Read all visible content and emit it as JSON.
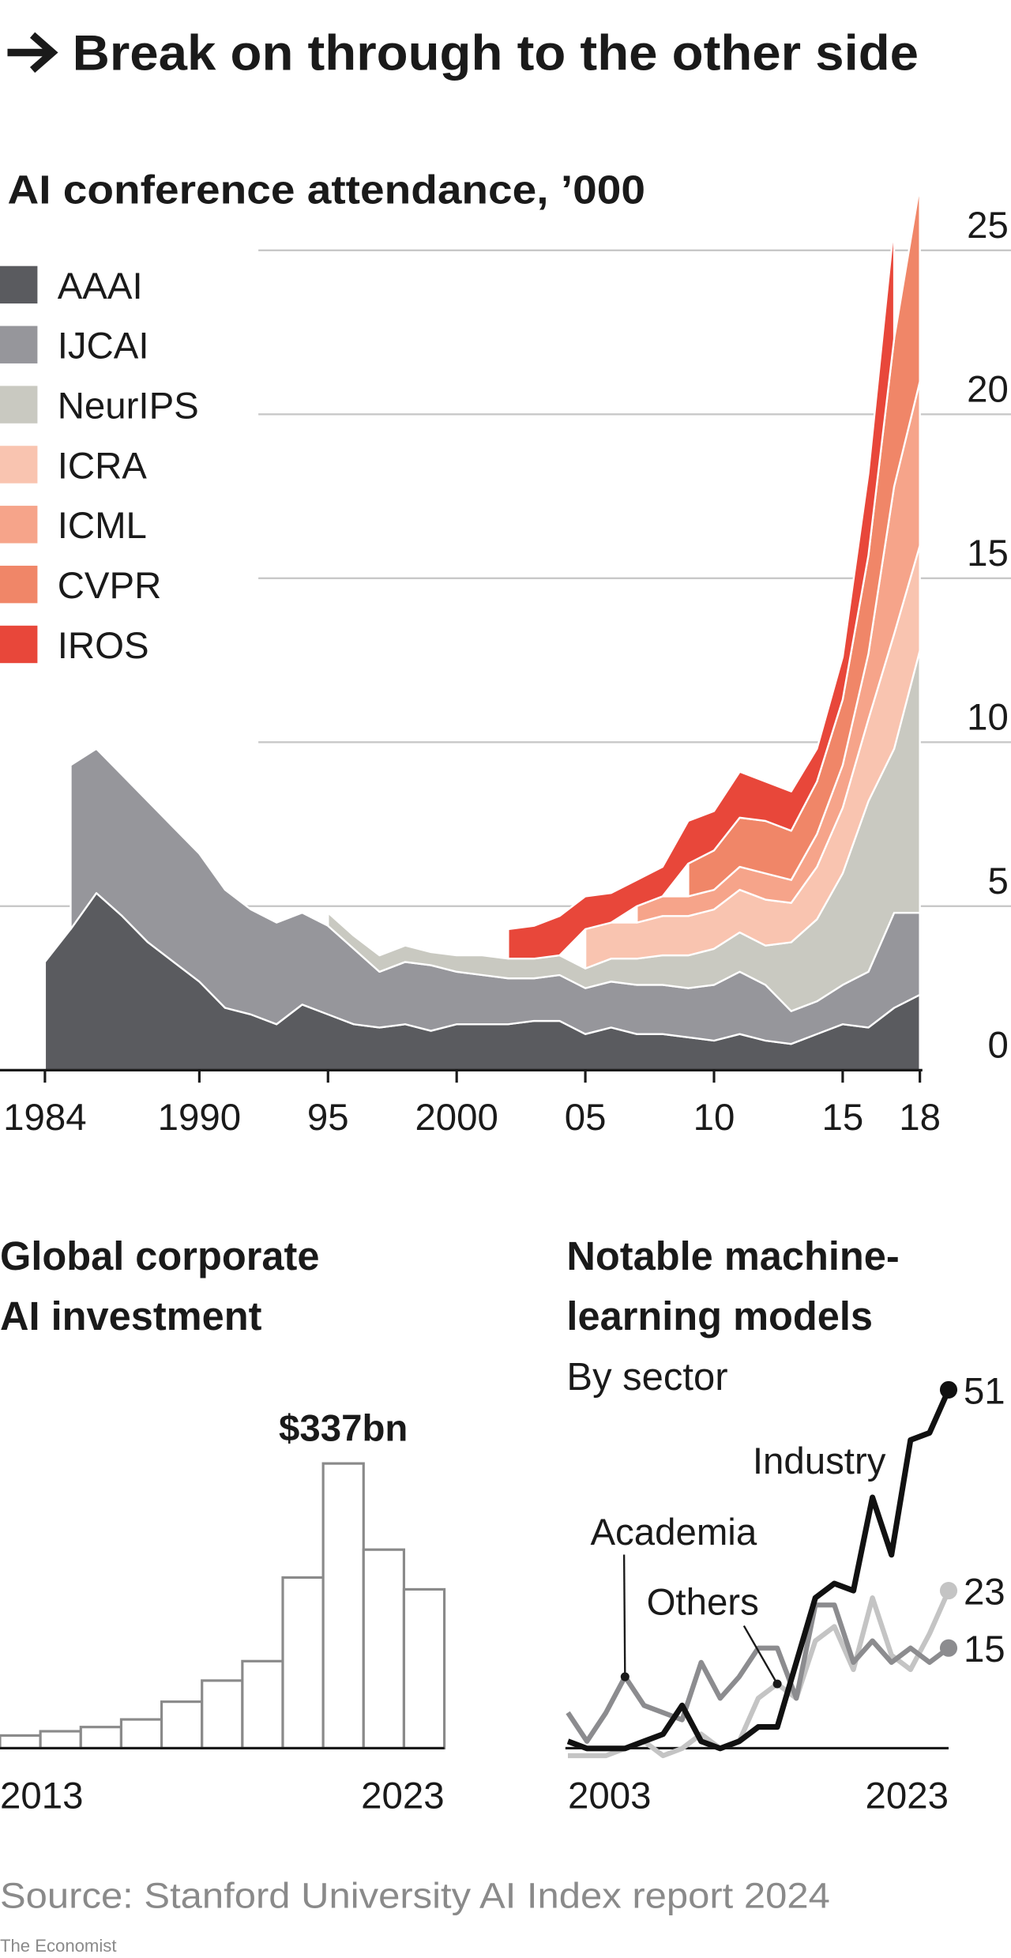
{
  "title": "Break on through to the other side",
  "chart_data": [
    {
      "type": "stacked-area",
      "title": "AI conference attendance, ’000",
      "x": [
        1984,
        1985,
        1986,
        1987,
        1988,
        1989,
        1990,
        1991,
        1992,
        1993,
        1994,
        1995,
        1996,
        1997,
        1998,
        1999,
        2000,
        2001,
        2002,
        2003,
        2004,
        2005,
        2006,
        2007,
        2008,
        2009,
        2010,
        2011,
        2012,
        2013,
        2014,
        2015,
        2016,
        2017,
        2018
      ],
      "xlim": [
        1984,
        2018
      ],
      "xticks": [
        1984,
        1990,
        {
          "value": 1995,
          "label": "95"
        },
        2000,
        {
          "value": 2005,
          "label": "05"
        },
        {
          "value": 2010,
          "label": "10"
        },
        {
          "value": 2015,
          "label": "15"
        },
        {
          "value": 2018,
          "label": "18"
        }
      ],
      "ylim": [
        0,
        27.3
      ],
      "yticks": [
        0,
        5,
        10,
        15,
        20,
        25
      ],
      "grid": true,
      "legend": "top-left",
      "series": [
        {
          "name": "AAAI",
          "color": "#5a5b5f",
          "values": [
            3.3,
            4.3,
            5.4,
            4.7,
            3.9,
            3.3,
            2.7,
            1.9,
            1.7,
            1.4,
            2.0,
            1.7,
            1.4,
            1.3,
            1.4,
            1.2,
            1.4,
            1.4,
            1.4,
            1.5,
            1.5,
            1.1,
            1.3,
            1.1,
            1.1,
            1.0,
            0.9,
            1.1,
            0.9,
            0.8,
            1.1,
            1.4,
            1.3,
            1.9,
            2.3
          ]
        },
        {
          "name": "IJCAI",
          "color": "#96969b",
          "values": [
            null,
            5.0,
            4.4,
            4.3,
            4.3,
            4.1,
            3.9,
            3.6,
            3.2,
            3.1,
            2.8,
            2.7,
            2.3,
            1.7,
            1.9,
            2.0,
            1.6,
            1.5,
            1.4,
            1.3,
            1.4,
            1.4,
            1.4,
            1.5,
            1.5,
            1.5,
            1.7,
            1.9,
            1.7,
            1.0,
            1.0,
            1.2,
            1.7,
            2.9,
            2.5
          ]
        },
        {
          "name": "NeurIPS",
          "color": "#c9c9c1",
          "values": [
            null,
            null,
            null,
            null,
            null,
            null,
            null,
            null,
            null,
            null,
            null,
            0.4,
            0.4,
            0.5,
            0.5,
            0.4,
            0.5,
            0.6,
            0.6,
            0.6,
            0.6,
            0.6,
            0.7,
            0.8,
            0.9,
            1.0,
            1.1,
            1.2,
            1.2,
            2.1,
            2.5,
            3.4,
            5.2,
            5.0,
            8.0
          ]
        },
        {
          "name": "ICRA",
          "color": "#f9c4b0",
          "values": [
            null,
            null,
            null,
            null,
            null,
            null,
            null,
            null,
            null,
            null,
            null,
            null,
            null,
            null,
            null,
            null,
            null,
            null,
            null,
            null,
            null,
            1.2,
            1.1,
            1.1,
            1.2,
            1.2,
            1.2,
            1.3,
            1.4,
            1.2,
            1.6,
            2.0,
            2.5,
            3.5,
            3.2
          ]
        },
        {
          "name": "ICML",
          "color": "#f6a48a",
          "values": [
            null,
            null,
            null,
            null,
            null,
            null,
            null,
            null,
            null,
            null,
            null,
            null,
            null,
            null,
            null,
            null,
            null,
            null,
            null,
            null,
            null,
            null,
            null,
            0.5,
            0.6,
            0.6,
            0.6,
            0.7,
            0.8,
            0.7,
            1.0,
            1.3,
            2.0,
            4.5,
            5.0
          ]
        },
        {
          "name": "CVPR",
          "color": "#f08668",
          "values": [
            null,
            null,
            null,
            null,
            null,
            null,
            null,
            null,
            null,
            null,
            null,
            null,
            null,
            null,
            null,
            null,
            null,
            null,
            null,
            null,
            null,
            null,
            null,
            null,
            null,
            1.0,
            1.2,
            1.5,
            1.6,
            1.5,
            1.6,
            2.0,
            3.0,
            4.5,
            6.0
          ]
        },
        {
          "name": "IROS",
          "color": "#e8473a",
          "values": [
            null,
            null,
            null,
            null,
            null,
            null,
            null,
            null,
            null,
            null,
            null,
            null,
            null,
            null,
            null,
            null,
            null,
            null,
            0.9,
            1.0,
            1.2,
            1.0,
            0.9,
            0.8,
            0.9,
            1.3,
            1.2,
            1.4,
            1.2,
            1.2,
            1.0,
            1.3,
            2.5,
            3.5,
            null
          ]
        }
      ]
    },
    {
      "type": "bar",
      "title": [
        "Global corporate",
        "AI investment"
      ],
      "categories": [
        "2013",
        null,
        null,
        null,
        null,
        null,
        null,
        null,
        null,
        null,
        "2023"
      ],
      "values": [
        15,
        20,
        25,
        34,
        55,
        80,
        103,
        202,
        337,
        235,
        188
      ],
      "value_labels": [
        null,
        null,
        null,
        null,
        null,
        null,
        null,
        null,
        "$337bn",
        null,
        null
      ],
      "color": "#ffffff"
    },
    {
      "type": "line",
      "title": [
        "Notable machine-",
        "learning models"
      ],
      "subtitle": "By sector",
      "x": [
        2003,
        2004,
        2005,
        2006,
        2007,
        2008,
        2009,
        2010,
        2011,
        2012,
        2013,
        2014,
        2015,
        2016,
        2017,
        2018,
        2019,
        2020,
        2021,
        2022,
        2023
      ],
      "xlim": [
        2003,
        2023
      ],
      "xticks": [
        2003,
        2023
      ],
      "series": [
        {
          "name": "Industry",
          "color": "#111111",
          "values": [
            2,
            1,
            1,
            1,
            2,
            3,
            7,
            2,
            1,
            2,
            4,
            4,
            13,
            22,
            24,
            23,
            36,
            28,
            44,
            45,
            51
          ]
        },
        {
          "name": "Academia",
          "color": "#8c8c8f",
          "values": [
            6,
            2,
            6,
            11,
            7,
            6,
            5,
            13,
            8,
            11,
            15,
            15,
            8,
            21,
            21,
            13,
            16,
            13,
            15,
            13,
            15
          ]
        },
        {
          "name": "Others",
          "color": "#c4c4c4",
          "values": [
            0,
            0,
            0,
            1,
            2,
            0,
            1,
            3,
            1,
            2,
            8,
            10,
            8,
            16,
            18,
            12,
            22,
            14,
            12,
            17,
            23
          ]
        }
      ]
    }
  ],
  "source": "Source: Stanford University AI Index report 2024",
  "footer": "The Economist"
}
